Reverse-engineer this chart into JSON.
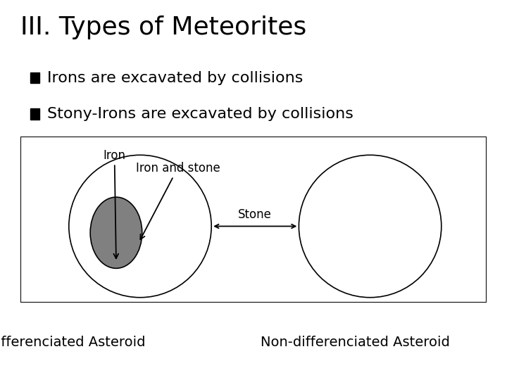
{
  "title": "III. Types of Meteorites",
  "title_fontsize": 26,
  "bullet1": "Irons are excavated by collisions",
  "bullet2": "Stony-Irons are excavated by collisions",
  "bullet_fontsize": 16,
  "background_color": "#ffffff",
  "text_color": "#000000",
  "inner_small_color": "#808080",
  "label_fontsize": 12,
  "asteroid_label_fontsize": 14
}
